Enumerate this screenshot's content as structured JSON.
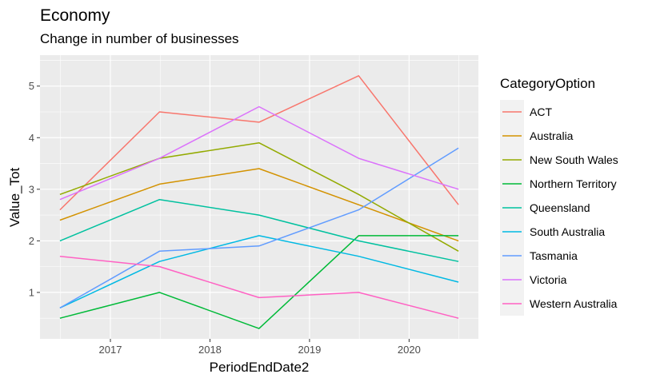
{
  "chart_data": {
    "type": "line",
    "title": "Economy",
    "subtitle": "Change in number of businesses",
    "xlabel": "PeriodEndDate2",
    "ylabel": "Value_Tot",
    "x": [
      "2016-06-30",
      "2017-06-30",
      "2018-06-30",
      "2019-06-30",
      "2020-06-30"
    ],
    "xticks": [
      "2017",
      "2018",
      "2019",
      "2020"
    ],
    "yticks": [
      "1",
      "2",
      "3",
      "4",
      "5"
    ],
    "ylim": [
      0.1,
      5.6
    ],
    "grid": true,
    "legend_title": "CategoryOption",
    "legend_position": "right",
    "series": [
      {
        "name": "ACT",
        "color": "#F8766D",
        "values": [
          2.6,
          4.5,
          4.3,
          5.2,
          2.7
        ]
      },
      {
        "name": "Australia",
        "color": "#D39200",
        "values": [
          2.4,
          3.1,
          3.4,
          2.7,
          2.0
        ]
      },
      {
        "name": "New South Wales",
        "color": "#93AA00",
        "values": [
          2.9,
          3.6,
          3.9,
          2.9,
          1.8
        ]
      },
      {
        "name": "Northern Territory",
        "color": "#00BA38",
        "values": [
          0.5,
          1.0,
          0.3,
          2.1,
          2.1
        ]
      },
      {
        "name": "Queensland",
        "color": "#00C19F",
        "values": [
          2.0,
          2.8,
          2.5,
          2.0,
          1.6
        ]
      },
      {
        "name": "South Australia",
        "color": "#00B9E3",
        "values": [
          0.7,
          1.6,
          2.1,
          1.7,
          1.2
        ]
      },
      {
        "name": "Tasmania",
        "color": "#619CFF",
        "values": [
          0.7,
          1.8,
          1.9,
          2.6,
          3.8
        ]
      },
      {
        "name": "Victoria",
        "color": "#DB72FB",
        "values": [
          2.8,
          3.6,
          4.6,
          3.6,
          3.0
        ]
      },
      {
        "name": "Western Australia",
        "color": "#FF61C3",
        "values": [
          1.7,
          1.5,
          0.9,
          1.0,
          0.5
        ]
      }
    ]
  }
}
